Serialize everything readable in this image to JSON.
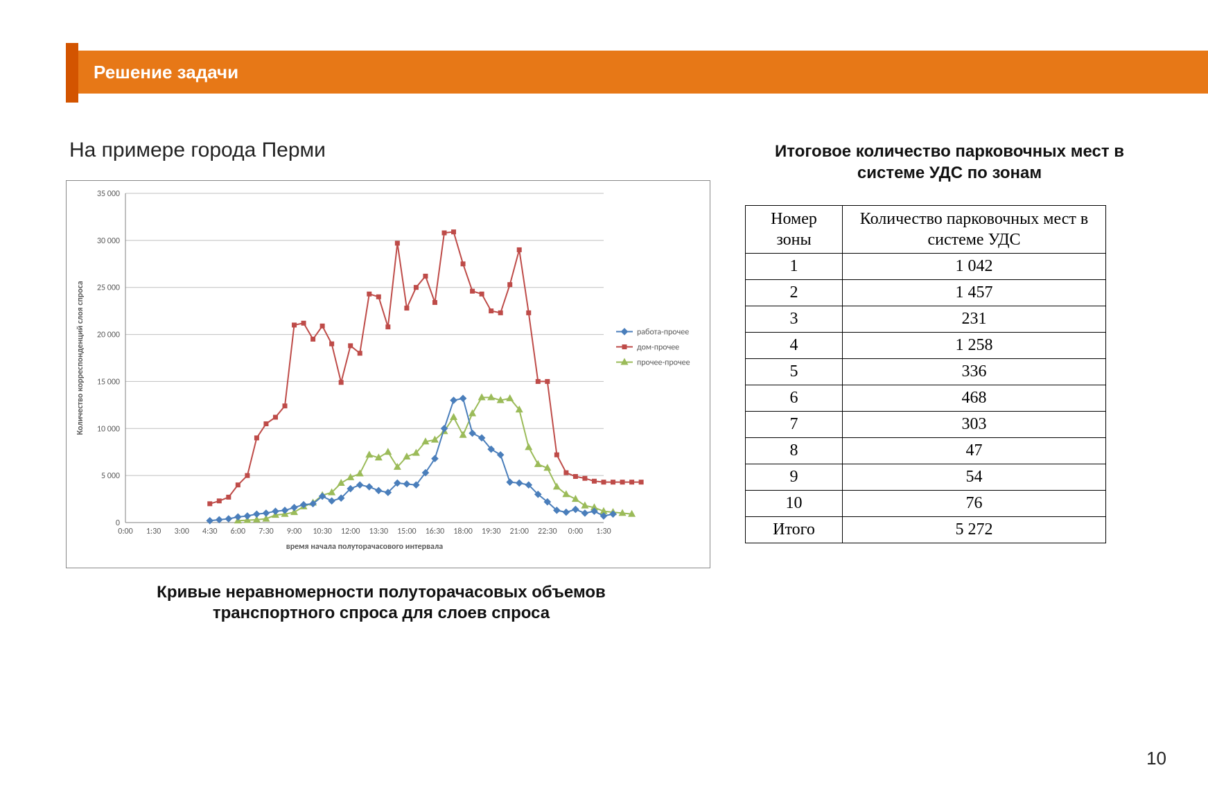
{
  "header": {
    "title": "Решение задачи",
    "bar_color": "#e77817",
    "accent_color": "#d35400",
    "title_color": "#ffffff",
    "title_fontsize": 26
  },
  "subtitle": "На примере города Перми",
  "page_number": "10",
  "chart": {
    "type": "line",
    "caption": "Кривые неравномерности полуторачасовых объемов транспортного спроса для слоев спроса",
    "x_axis_label": "время начала полуторачасового интервала",
    "y_axis_label": "Количество корреспонденций слоя спроса",
    "label_fontsize": 12,
    "tick_fontsize": 12,
    "background_color": "#ffffff",
    "border_color": "#888888",
    "gridline_color": "#bfbfbf",
    "plot_border_color": "#808080",
    "ylim": [
      0,
      35000
    ],
    "ytick_step": 5000,
    "yticks": [
      "0",
      "5 000",
      "10 000",
      "15 000",
      "20 000",
      "25 000",
      "30 000",
      "35 000"
    ],
    "xticks": [
      "0:00",
      "1:30",
      "3:00",
      "4:30",
      "6:00",
      "7:30",
      "9:00",
      "10:30",
      "12:00",
      "13:30",
      "15:00",
      "16:30",
      "18:00",
      "19:30",
      "21:00",
      "22:30",
      "0:00",
      "1:30"
    ],
    "series": [
      {
        "name": "работа-прочее",
        "color": "#4a7ebb",
        "marker": "diamond",
        "marker_size": 6,
        "line_width": 2,
        "start_index": 3,
        "values": [
          200,
          300,
          400,
          600,
          700,
          900,
          1000,
          1200,
          1300,
          1600,
          1900,
          2000,
          2800,
          2300,
          2600,
          3600,
          4000,
          3800,
          3400,
          3200,
          4200,
          4100,
          4000,
          5300,
          6800,
          10000,
          13000,
          13200,
          9500,
          9000,
          7800,
          7200,
          4300,
          4200,
          4000,
          3000,
          2200,
          1300,
          1100,
          1400,
          1000,
          1200,
          700,
          900
        ]
      },
      {
        "name": "дом-прочее",
        "color": "#be4b48",
        "marker": "square",
        "marker_size": 6,
        "line_width": 2,
        "start_index": 3,
        "values": [
          2000,
          2300,
          2700,
          4000,
          5000,
          9000,
          10500,
          11200,
          12400,
          21000,
          21200,
          19500,
          20900,
          19000,
          14900,
          18800,
          18000,
          24300,
          24000,
          20800,
          29700,
          22800,
          25000,
          26200,
          23400,
          30800,
          30900,
          27500,
          24600,
          24300,
          22500,
          22300,
          25300,
          29000,
          22300,
          15000,
          15000,
          7200,
          5300,
          4900,
          4700,
          4400,
          4300,
          4300,
          4300,
          4300,
          4300
        ]
      },
      {
        "name": "прочее-прочее",
        "color": "#9bbb59",
        "marker": "triangle",
        "marker_size": 7,
        "line_width": 2,
        "start_index": 4,
        "values": [
          200,
          250,
          300,
          400,
          800,
          900,
          1100,
          1700,
          2100,
          2900,
          3200,
          4200,
          4800,
          5200,
          7200,
          6900,
          7500,
          5900,
          7000,
          7400,
          8600,
          8800,
          9700,
          11200,
          9300,
          11600,
          13300,
          13300,
          13000,
          13200,
          12000,
          8000,
          6200,
          5800,
          3800,
          3000,
          2500,
          1800,
          1600,
          1200,
          1100,
          1000,
          900
        ]
      }
    ],
    "legend_position": "right"
  },
  "table": {
    "title": "Итоговое количество парковочных мест в системе УДС по зонам",
    "columns": [
      "Номер зоны",
      "Количество парковочных мест в системе УДС"
    ],
    "rows": [
      [
        "1",
        "1 042"
      ],
      [
        "2",
        "1 457"
      ],
      [
        "3",
        "231"
      ],
      [
        "4",
        "1 258"
      ],
      [
        "5",
        "336"
      ],
      [
        "6",
        "468"
      ],
      [
        "7",
        "303"
      ],
      [
        "8",
        "47"
      ],
      [
        "9",
        "54"
      ],
      [
        "10",
        "76"
      ],
      [
        "Итого",
        "5 272"
      ]
    ],
    "font_family": "Times New Roman",
    "font_size": 24,
    "border_color": "#000000"
  }
}
